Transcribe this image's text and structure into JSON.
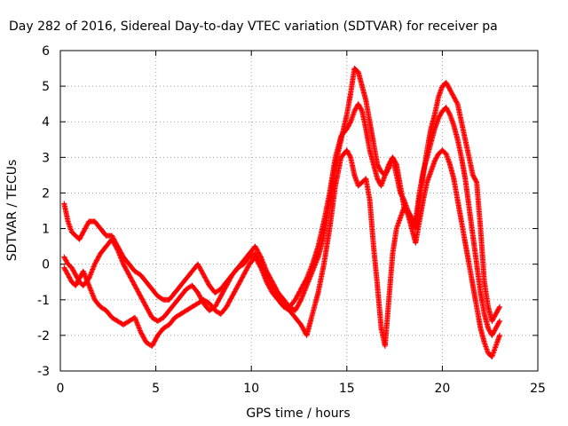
{
  "chart_data": {
    "type": "scatter",
    "title": "Day 282 of 2016, Sidereal Day-to-day VTEC variation (SDTVAR) for receiver pa",
    "xlabel": "GPS time / hours",
    "ylabel": "SDTVAR / TECUs",
    "xlim": [
      0,
      25
    ],
    "ylim": [
      -3,
      6
    ],
    "x_ticks": [
      0,
      5,
      10,
      15,
      20,
      25
    ],
    "y_ticks": [
      -3,
      -2,
      -1,
      0,
      1,
      2,
      3,
      4,
      5,
      6
    ],
    "x_tick_labels": [
      "0",
      "5",
      "10",
      "15",
      "20",
      "25"
    ],
    "y_tick_labels": [
      "-3",
      "-2",
      "-1",
      "0",
      "1",
      "2",
      "3",
      "4",
      "5",
      "6"
    ],
    "grid": true,
    "legend": "none",
    "marker": "plus",
    "color": "#ff0000",
    "series": [
      {
        "x": [
          0.2,
          0.4,
          0.6,
          0.8,
          1.0,
          1.2,
          1.5,
          1.8,
          2.1,
          2.4,
          2.7,
          3.0,
          3.3,
          3.6,
          3.9,
          4.2,
          4.5,
          4.8,
          5.1,
          5.4,
          5.7,
          6.0,
          6.3,
          6.6,
          6.9,
          7.2,
          7.5,
          7.8,
          8.1,
          8.4,
          8.7,
          9.0,
          9.3,
          9.6,
          9.9,
          10.2,
          10.5,
          10.8,
          11.1,
          11.4,
          11.7,
          12.0,
          12.3,
          12.6,
          12.9,
          13.2,
          13.5,
          13.8,
          14.1,
          14.4,
          14.7,
          15.0,
          15.2,
          15.4,
          15.6,
          15.8,
          16.0,
          16.2,
          16.4,
          16.6,
          16.8,
          17.0,
          17.2,
          17.4,
          17.6,
          17.8,
          18.0,
          18.2,
          18.4,
          18.6,
          18.8,
          19.0,
          19.2,
          19.4,
          19.6,
          19.8,
          20.0,
          20.2,
          20.4,
          20.6,
          20.8,
          21.0,
          21.2,
          21.4,
          21.6,
          21.8,
          22.0,
          22.2,
          22.4,
          22.6,
          22.8,
          23.0
        ],
        "y": [
          1.7,
          1.2,
          0.9,
          0.8,
          0.7,
          0.9,
          1.2,
          1.2,
          1.0,
          0.8,
          0.8,
          0.5,
          0.2,
          0.0,
          -0.2,
          -0.3,
          -0.5,
          -0.7,
          -0.9,
          -1.0,
          -1.0,
          -0.8,
          -0.6,
          -0.4,
          -0.2,
          0.0,
          -0.3,
          -0.6,
          -0.8,
          -0.7,
          -0.5,
          -0.3,
          -0.1,
          0.0,
          0.2,
          0.3,
          0.0,
          -0.3,
          -0.6,
          -0.9,
          -1.1,
          -1.2,
          -1.3,
          -1.0,
          -0.6,
          -0.2,
          0.2,
          0.8,
          1.8,
          2.8,
          3.5,
          4.2,
          4.8,
          5.5,
          5.4,
          5.0,
          4.6,
          4.0,
          3.4,
          2.8,
          2.6,
          2.5,
          2.7,
          3.0,
          2.8,
          2.2,
          1.6,
          1.5,
          1.2,
          1.0,
          1.8,
          2.5,
          3.2,
          3.8,
          4.2,
          4.7,
          5.0,
          5.1,
          4.9,
          4.7,
          4.5,
          4.0,
          3.5,
          3.0,
          2.5,
          2.3,
          1.0,
          -0.5,
          -1.2,
          -1.6,
          -1.4,
          -1.2
        ]
      },
      {
        "x": [
          0.2,
          0.4,
          0.6,
          0.8,
          1.0,
          1.2,
          1.5,
          1.8,
          2.1,
          2.4,
          2.7,
          3.0,
          3.3,
          3.6,
          3.9,
          4.2,
          4.5,
          4.8,
          5.1,
          5.4,
          5.7,
          6.0,
          6.3,
          6.6,
          6.9,
          7.2,
          7.5,
          7.8,
          8.1,
          8.4,
          8.7,
          9.0,
          9.3,
          9.6,
          9.9,
          10.2,
          10.5,
          10.8,
          11.1,
          11.4,
          11.7,
          12.0,
          12.3,
          12.6,
          12.9,
          13.2,
          13.5,
          13.8,
          14.1,
          14.4,
          14.7,
          15.0,
          15.2,
          15.4,
          15.6,
          15.8,
          16.0,
          16.2,
          16.4,
          16.6,
          16.8,
          17.0,
          17.2,
          17.4,
          17.6,
          17.8,
          18.0,
          18.2,
          18.4,
          18.6,
          18.8,
          19.0,
          19.2,
          19.4,
          19.6,
          19.8,
          20.0,
          20.2,
          20.4,
          20.6,
          20.8,
          21.0,
          21.2,
          21.4,
          21.6,
          21.8,
          22.0,
          22.2,
          22.4,
          22.6,
          22.8,
          23.0
        ],
        "y": [
          0.2,
          0.0,
          -0.1,
          -0.3,
          -0.5,
          -0.6,
          -0.4,
          0.0,
          0.3,
          0.5,
          0.7,
          0.4,
          0.0,
          -0.3,
          -0.6,
          -0.9,
          -1.2,
          -1.5,
          -1.6,
          -1.5,
          -1.3,
          -1.1,
          -0.9,
          -0.7,
          -0.6,
          -0.8,
          -1.1,
          -1.3,
          -1.2,
          -0.9,
          -0.6,
          -0.3,
          -0.1,
          0.1,
          0.3,
          0.5,
          0.2,
          -0.2,
          -0.5,
          -0.8,
          -1.0,
          -1.2,
          -1.0,
          -0.7,
          -0.4,
          0.0,
          0.5,
          1.2,
          2.0,
          3.0,
          3.6,
          3.8,
          4.0,
          4.3,
          4.5,
          4.3,
          3.8,
          3.2,
          2.8,
          2.4,
          2.2,
          2.5,
          2.8,
          3.0,
          2.5,
          2.0,
          1.8,
          1.5,
          1.3,
          1.2,
          2.0,
          2.6,
          3.0,
          3.4,
          3.8,
          4.1,
          4.3,
          4.4,
          4.2,
          3.9,
          3.5,
          3.0,
          2.4,
          1.6,
          0.8,
          0.0,
          -0.8,
          -1.4,
          -1.8,
          -2.0,
          -1.8,
          -1.6
        ]
      },
      {
        "x": [
          0.2,
          0.4,
          0.6,
          0.8,
          1.0,
          1.2,
          1.5,
          1.8,
          2.1,
          2.4,
          2.7,
          3.0,
          3.3,
          3.6,
          3.9,
          4.2,
          4.5,
          4.8,
          5.1,
          5.4,
          5.7,
          6.0,
          6.3,
          6.6,
          6.9,
          7.2,
          7.5,
          7.8,
          8.1,
          8.4,
          8.7,
          9.0,
          9.3,
          9.6,
          9.9,
          10.2,
          10.5,
          10.8,
          11.1,
          11.4,
          11.7,
          12.0,
          12.3,
          12.6,
          12.9,
          13.2,
          13.5,
          13.8,
          14.1,
          14.4,
          14.7,
          15.0,
          15.2,
          15.4,
          15.6,
          15.8,
          16.0,
          16.2,
          16.4,
          16.6,
          16.8,
          17.0,
          17.2,
          17.4,
          17.6,
          17.8,
          18.0,
          18.2,
          18.4,
          18.6,
          18.8,
          19.0,
          19.2,
          19.4,
          19.6,
          19.8,
          20.0,
          20.2,
          20.4,
          20.6,
          20.8,
          21.0,
          21.2,
          21.4,
          21.6,
          21.8,
          22.0,
          22.2,
          22.4,
          22.6,
          22.8,
          23.0
        ],
        "y": [
          -0.1,
          -0.3,
          -0.5,
          -0.6,
          -0.4,
          -0.2,
          -0.6,
          -1.0,
          -1.2,
          -1.3,
          -1.5,
          -1.6,
          -1.7,
          -1.6,
          -1.5,
          -1.9,
          -2.2,
          -2.3,
          -2.0,
          -1.8,
          -1.7,
          -1.5,
          -1.4,
          -1.3,
          -1.2,
          -1.1,
          -1.0,
          -1.1,
          -1.3,
          -1.4,
          -1.2,
          -0.9,
          -0.6,
          -0.3,
          0.0,
          0.2,
          -0.1,
          -0.5,
          -0.8,
          -1.0,
          -1.2,
          -1.3,
          -1.5,
          -1.7,
          -2.0,
          -1.4,
          -0.8,
          0.0,
          1.0,
          2.2,
          3.0,
          3.2,
          3.0,
          2.5,
          2.2,
          2.3,
          2.4,
          1.8,
          0.5,
          -0.6,
          -1.8,
          -2.3,
          -1.0,
          0.3,
          1.0,
          1.3,
          1.6,
          1.4,
          1.0,
          0.6,
          1.2,
          1.8,
          2.3,
          2.6,
          2.9,
          3.1,
          3.2,
          3.1,
          2.8,
          2.4,
          1.8,
          1.2,
          0.6,
          0.0,
          -0.6,
          -1.2,
          -1.8,
          -2.2,
          -2.5,
          -2.6,
          -2.3,
          -2.0
        ]
      }
    ]
  }
}
